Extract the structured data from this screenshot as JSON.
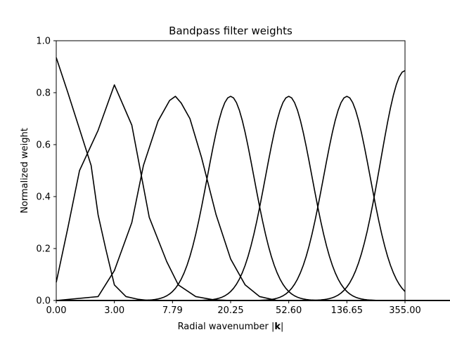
{
  "chart_data": {
    "type": "line",
    "title": "Bandpass filter weights",
    "xlabel_prefix": "Radial wavenumber |",
    "xlabel_bold": "k",
    "xlabel_suffix": "|",
    "ylabel": "Normalized weight",
    "ylim": [
      0,
      1
    ],
    "yticks": [
      "0.0",
      "0.2",
      "0.4",
      "0.6",
      "0.8",
      "1.0"
    ],
    "xticks": [
      "0.00",
      "3.00",
      "7.79",
      "20.25",
      "52.60",
      "136.65",
      "355.00"
    ],
    "grid": false,
    "legend": "none",
    "line_color": "#000000",
    "x_scale_note": "x axis is linear in filter index; ticks mark filter centers at indices 0..6",
    "series": [
      {
        "values": [
          [
            0,
            0.935
          ],
          [
            0.2,
            0.8
          ],
          [
            0.4,
            0.66
          ],
          [
            0.6,
            0.52
          ],
          [
            0.72,
            0.33
          ],
          [
            0.85,
            0.2
          ],
          [
            1.0,
            0.06
          ],
          [
            1.2,
            0.015
          ],
          [
            1.4,
            0.005
          ],
          [
            1.6,
            0.0
          ],
          [
            7.0,
            0.0
          ]
        ]
      },
      {
        "values": [
          [
            0,
            0.07
          ],
          [
            0.2,
            0.28
          ],
          [
            0.4,
            0.5
          ],
          [
            0.72,
            0.655
          ],
          [
            1.0,
            0.83
          ],
          [
            1.3,
            0.675
          ],
          [
            1.6,
            0.32
          ],
          [
            1.9,
            0.15
          ],
          [
            2.1,
            0.06
          ],
          [
            2.4,
            0.015
          ],
          [
            2.7,
            0.003
          ],
          [
            3.0,
            0.0
          ],
          [
            7.0,
            0.0
          ]
        ]
      },
      {
        "values": [
          [
            0,
            0.0
          ],
          [
            0.72,
            0.015
          ],
          [
            1.0,
            0.115
          ],
          [
            1.3,
            0.3
          ],
          [
            1.5,
            0.52
          ],
          [
            1.75,
            0.69
          ],
          [
            1.95,
            0.77
          ],
          [
            2.05,
            0.786
          ],
          [
            2.15,
            0.76
          ],
          [
            2.3,
            0.7
          ],
          [
            2.5,
            0.55
          ],
          [
            2.75,
            0.33
          ],
          [
            3.0,
            0.16
          ],
          [
            3.25,
            0.06
          ],
          [
            3.5,
            0.015
          ],
          [
            3.8,
            0.0
          ],
          [
            7.0,
            0.0
          ]
        ]
      }
    ],
    "peaks": [
      3.0,
      4.0,
      5.0
    ],
    "peak_value": 0.786,
    "last_value_at_edge": 0.885
  }
}
